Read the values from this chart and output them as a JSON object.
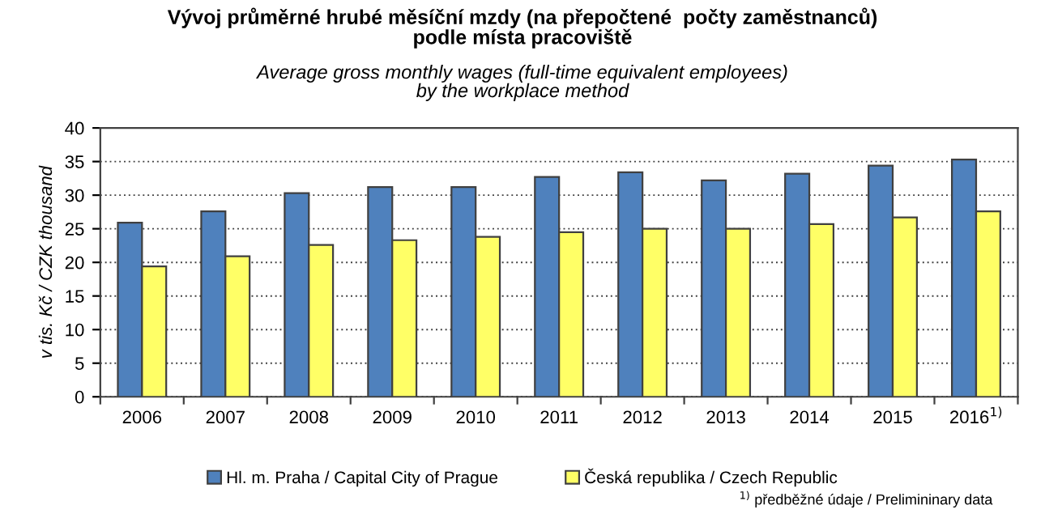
{
  "chart_data": {
    "type": "bar",
    "title": "Vývoj průměrné hrubé měsíční mzdy (na přepočtené  počty zaměstnanců)\npodle místa pracoviště",
    "subtitle": "Average gross monthly wages (full-time equivalent employees)\nby the workplace method",
    "ylabel": "v tis. Kč / CZK thousand",
    "categories": [
      "2006",
      "2007",
      "2008",
      "2009",
      "2010",
      "2011",
      "2012",
      "2013",
      "2014",
      "2015",
      "2016$^{1)}$"
    ],
    "series": [
      {
        "name": "Hl. m. Praha / Capital City of Prague",
        "color": "#4f81bd",
        "values": [
          25.9,
          27.6,
          30.3,
          31.2,
          31.2,
          32.7,
          33.4,
          32.2,
          33.2,
          34.4,
          35.3
        ]
      },
      {
        "name": "Česká republika / Czech Republic",
        "color": "#ffff66",
        "values": [
          19.4,
          20.9,
          22.6,
          23.3,
          23.8,
          24.5,
          25.0,
          25.0,
          25.7,
          26.7,
          27.6
        ]
      }
    ],
    "ylim": [
      0,
      40
    ],
    "yticks": [
      0,
      5,
      10,
      15,
      20,
      25,
      30,
      35,
      40
    ],
    "grid": "y",
    "legend": "bottom",
    "annotations": [
      "$^{1)}$ předběžné údaje / Prelimininary data"
    ]
  }
}
